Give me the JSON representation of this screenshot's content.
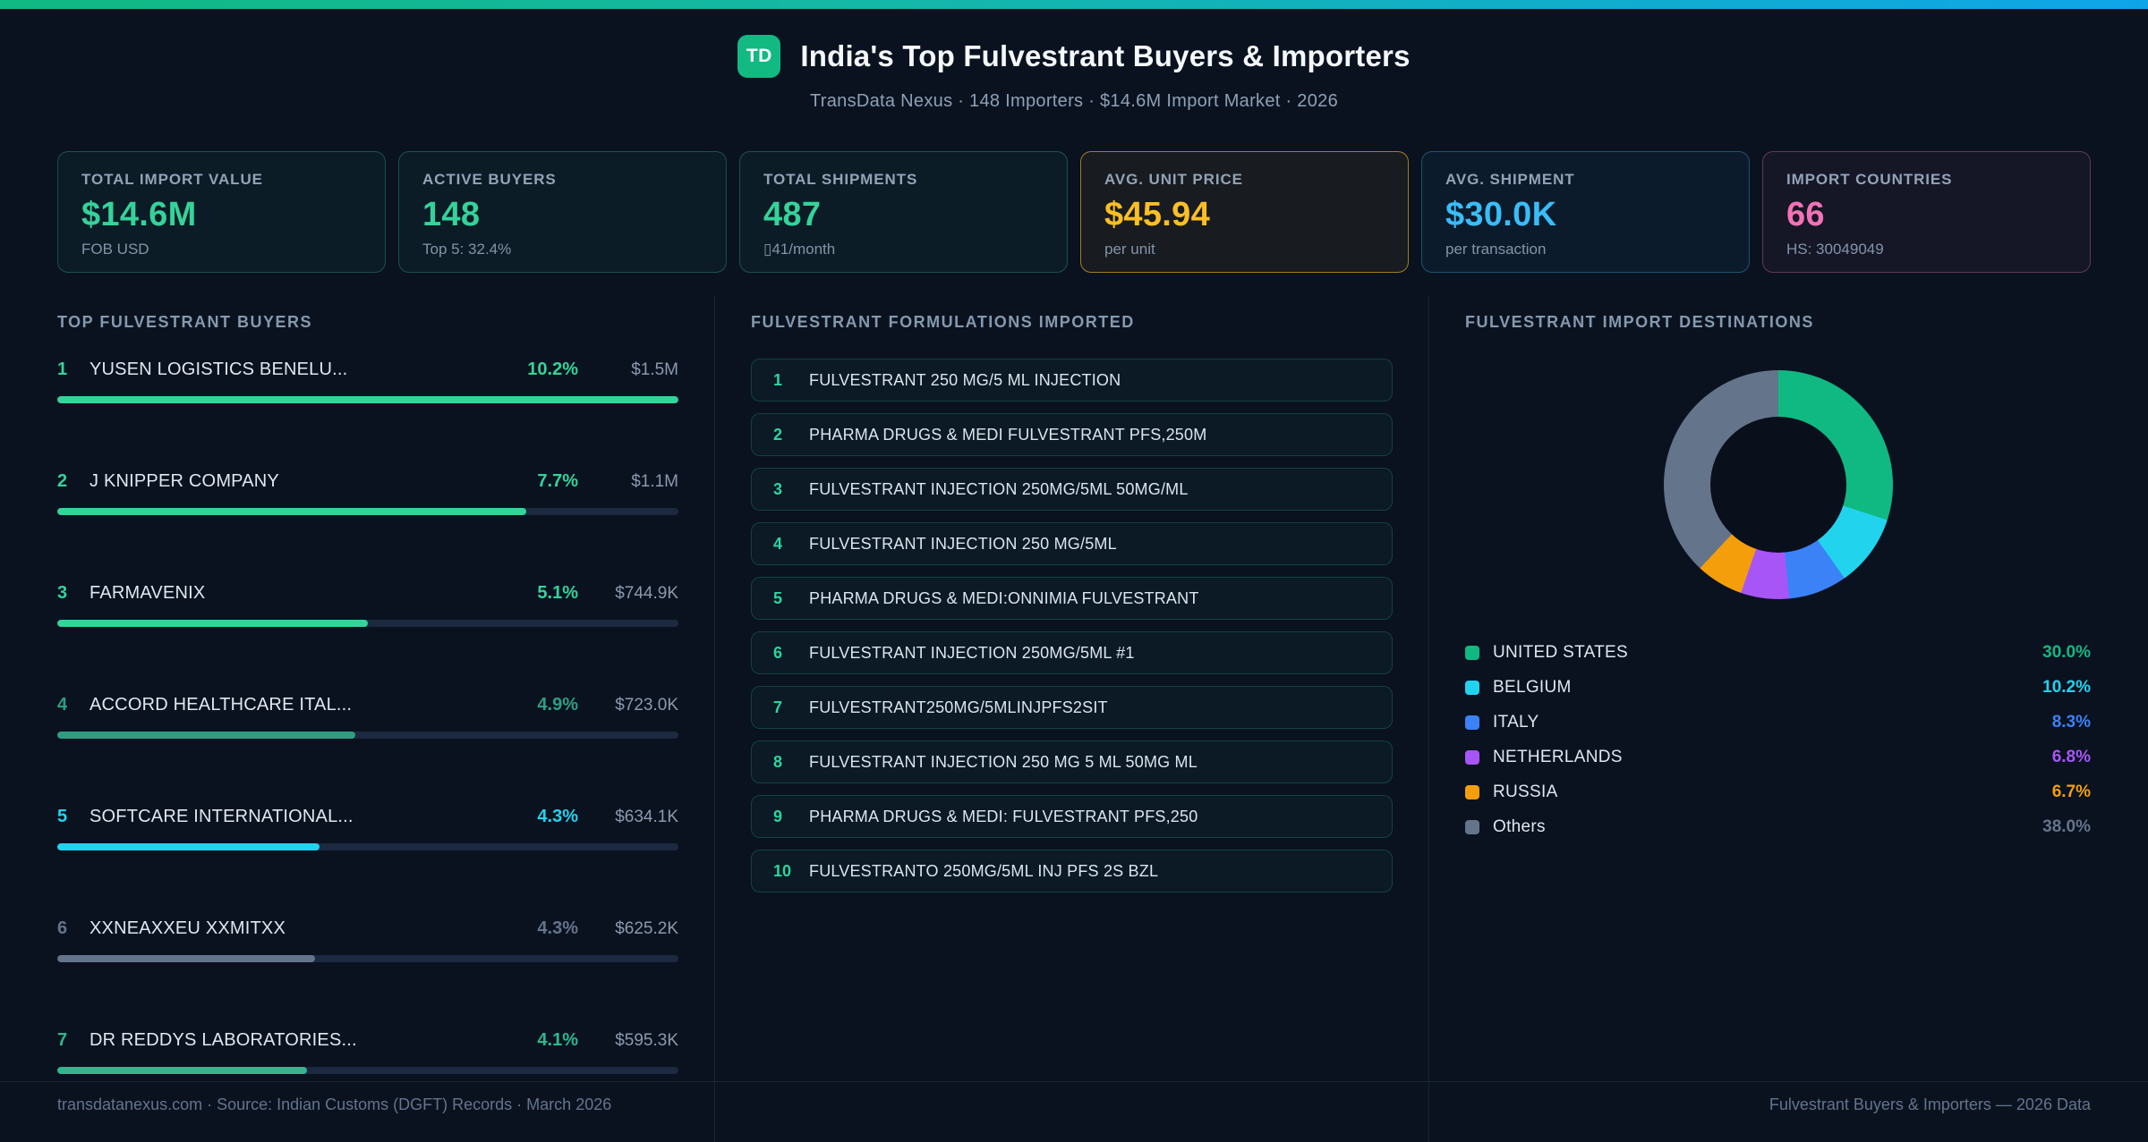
{
  "theme": {
    "background": "#0a1220",
    "accent_green": "#34d399",
    "accent_cyan": "#22d3ee",
    "accent_blue": "#3b82f6",
    "accent_purple": "#a855f7",
    "accent_orange": "#f59e0b",
    "accent_yellow": "#fbbf24",
    "accent_pink": "#f472b6",
    "accent_slate": "#64748b"
  },
  "header": {
    "logo": "TD",
    "title": "India's Top Fulvestrant Buyers & Importers",
    "subtitle": "TransData Nexus · 148 Importers · $14.6M Import Market · 2026"
  },
  "stats": [
    {
      "label": "TOTAL IMPORT VALUE",
      "value": "$14.6M",
      "sub": "FOB USD",
      "color": "#34d399",
      "border": "rgba(52,211,153,0.30)",
      "bg": "rgba(52,211,153,0.05)"
    },
    {
      "label": "ACTIVE BUYERS",
      "value": "148",
      "sub": "Top 5: 32.4%",
      "color": "#34d399",
      "border": "rgba(52,211,153,0.30)",
      "bg": "rgba(52,211,153,0.05)"
    },
    {
      "label": "TOTAL SHIPMENTS",
      "value": "487",
      "sub": "▯41/month",
      "color": "#34d399",
      "border": "rgba(52,211,153,0.30)",
      "bg": "rgba(52,211,153,0.05)"
    },
    {
      "label": "AVG. UNIT PRICE",
      "value": "$45.94",
      "sub": "per unit",
      "color": "#fbbf24",
      "border": "rgba(251,191,36,0.60)",
      "bg": "rgba(251,191,36,0.06)"
    },
    {
      "label": "AVG. SHIPMENT",
      "value": "$30.0K",
      "sub": "per transaction",
      "color": "#38bdf8",
      "border": "rgba(56,189,248,0.35)",
      "bg": "rgba(56,189,248,0.05)"
    },
    {
      "label": "IMPORT COUNTRIES",
      "value": "66",
      "sub": "HS: 30049049",
      "color": "#f472b6",
      "border": "rgba(244,114,182,0.35)",
      "bg": "rgba(244,114,182,0.05)"
    }
  ],
  "buyers": {
    "title": "TOP FULVESTRANT BUYERS",
    "items": [
      {
        "rank": "1",
        "name": "YUSEN LOGISTICS BENELU...",
        "pct": "10.2%",
        "value": "$1.5M",
        "bar_width": "100%",
        "color": "#34d399"
      },
      {
        "rank": "2",
        "name": "J KNIPPER COMPANY",
        "pct": "7.7%",
        "value": "$1.1M",
        "bar_width": "75.5%",
        "color": "#34d399"
      },
      {
        "rank": "3",
        "name": "FARMAVENIX",
        "pct": "5.1%",
        "value": "$744.9K",
        "bar_width": "50%",
        "color": "#34d399"
      },
      {
        "rank": "4",
        "name": "ACCORD HEALTHCARE ITAL...",
        "pct": "4.9%",
        "value": "$723.0K",
        "bar_width": "48%",
        "color": "#2f9e80"
      },
      {
        "rank": "5",
        "name": "SOFTCARE INTERNATIONAL...",
        "pct": "4.3%",
        "value": "$634.1K",
        "bar_width": "42.2%",
        "color": "#22d3ee"
      },
      {
        "rank": "6",
        "name": "XXNEAXXEU XXMITXX",
        "pct": "4.3%",
        "value": "$625.2K",
        "bar_width": "41.5%",
        "color": "#64748b"
      },
      {
        "rank": "7",
        "name": "DR REDDYS LABORATORIES...",
        "pct": "4.1%",
        "value": "$595.3K",
        "bar_width": "40.2%",
        "color": "#2fb78d"
      }
    ]
  },
  "formulations": {
    "title": "FULVESTRANT FORMULATIONS IMPORTED",
    "items": [
      {
        "rank": "1",
        "name": "FULVESTRANT 250 MG/5 ML INJECTION"
      },
      {
        "rank": "2",
        "name": "PHARMA DRUGS & MEDI FULVESTRANT PFS,250M"
      },
      {
        "rank": "3",
        "name": "FULVESTRANT INJECTION 250MG/5ML 50MG/ML"
      },
      {
        "rank": "4",
        "name": "FULVESTRANT INJECTION 250 MG/5ML"
      },
      {
        "rank": "5",
        "name": "PHARMA DRUGS & MEDI:ONNIMIA FULVESTRANT"
      },
      {
        "rank": "6",
        "name": "FULVESTRANT INJECTION 250MG/5ML #1"
      },
      {
        "rank": "7",
        "name": "FULVESTRANT250MG/5MLINJPFS2SIT"
      },
      {
        "rank": "8",
        "name": "FULVESTRANT INJECTION 250 MG 5 ML 50MG ML"
      },
      {
        "rank": "9",
        "name": "PHARMA DRUGS & MEDI: FULVESTRANT PFS,250"
      },
      {
        "rank": "10",
        "name": "FULVESTRANTO 250MG/5ML INJ PFS 2S BZL"
      }
    ]
  },
  "destinations": {
    "title": "FULVESTRANT IMPORT DESTINATIONS",
    "legend": [
      {
        "label": "UNITED STATES",
        "pct": "30.0%",
        "color": "#10b981"
      },
      {
        "label": "BELGIUM",
        "pct": "10.2%",
        "color": "#22d3ee"
      },
      {
        "label": "ITALY",
        "pct": "8.3%",
        "color": "#3b82f6"
      },
      {
        "label": "NETHERLANDS",
        "pct": "6.8%",
        "color": "#a855f7"
      },
      {
        "label": "RUSSIA",
        "pct": "6.7%",
        "color": "#f59e0b"
      },
      {
        "label": "Others",
        "pct": "38.0%",
        "color": "#64748b"
      }
    ]
  },
  "chart_data": [
    {
      "type": "bar",
      "orientation": "horizontal",
      "title": "TOP FULVESTRANT BUYERS",
      "categories": [
        "YUSEN LOGISTICS BENELU...",
        "J KNIPPER COMPANY",
        "FARMAVENIX",
        "ACCORD HEALTHCARE ITAL...",
        "SOFTCARE INTERNATIONAL...",
        "XXNEAXXEU XXMITXX",
        "DR REDDYS LABORATORIES..."
      ],
      "values": [
        10.2,
        7.7,
        5.1,
        4.9,
        4.3,
        4.3,
        4.1
      ],
      "value_labels": [
        "$1.5M",
        "$1.1M",
        "$744.9K",
        "$723.0K",
        "$634.1K",
        "$625.2K",
        "$595.3K"
      ],
      "unit": "% share of import value",
      "xlim": [
        0,
        10.2
      ]
    },
    {
      "type": "pie",
      "donut": true,
      "title": "FULVESTRANT IMPORT DESTINATIONS",
      "categories": [
        "UNITED STATES",
        "BELGIUM",
        "ITALY",
        "NETHERLANDS",
        "RUSSIA",
        "Others"
      ],
      "values": [
        30.0,
        10.2,
        8.3,
        6.8,
        6.7,
        38.0
      ],
      "colors": [
        "#10b981",
        "#22d3ee",
        "#3b82f6",
        "#a855f7",
        "#f59e0b",
        "#64748b"
      ],
      "unit": "%",
      "legend_position": "bottom"
    }
  ],
  "footer": {
    "left": "transdatanexus.com · Source: Indian Customs (DGFT) Records · March 2026",
    "right": "Fulvestrant Buyers & Importers — 2026 Data"
  }
}
